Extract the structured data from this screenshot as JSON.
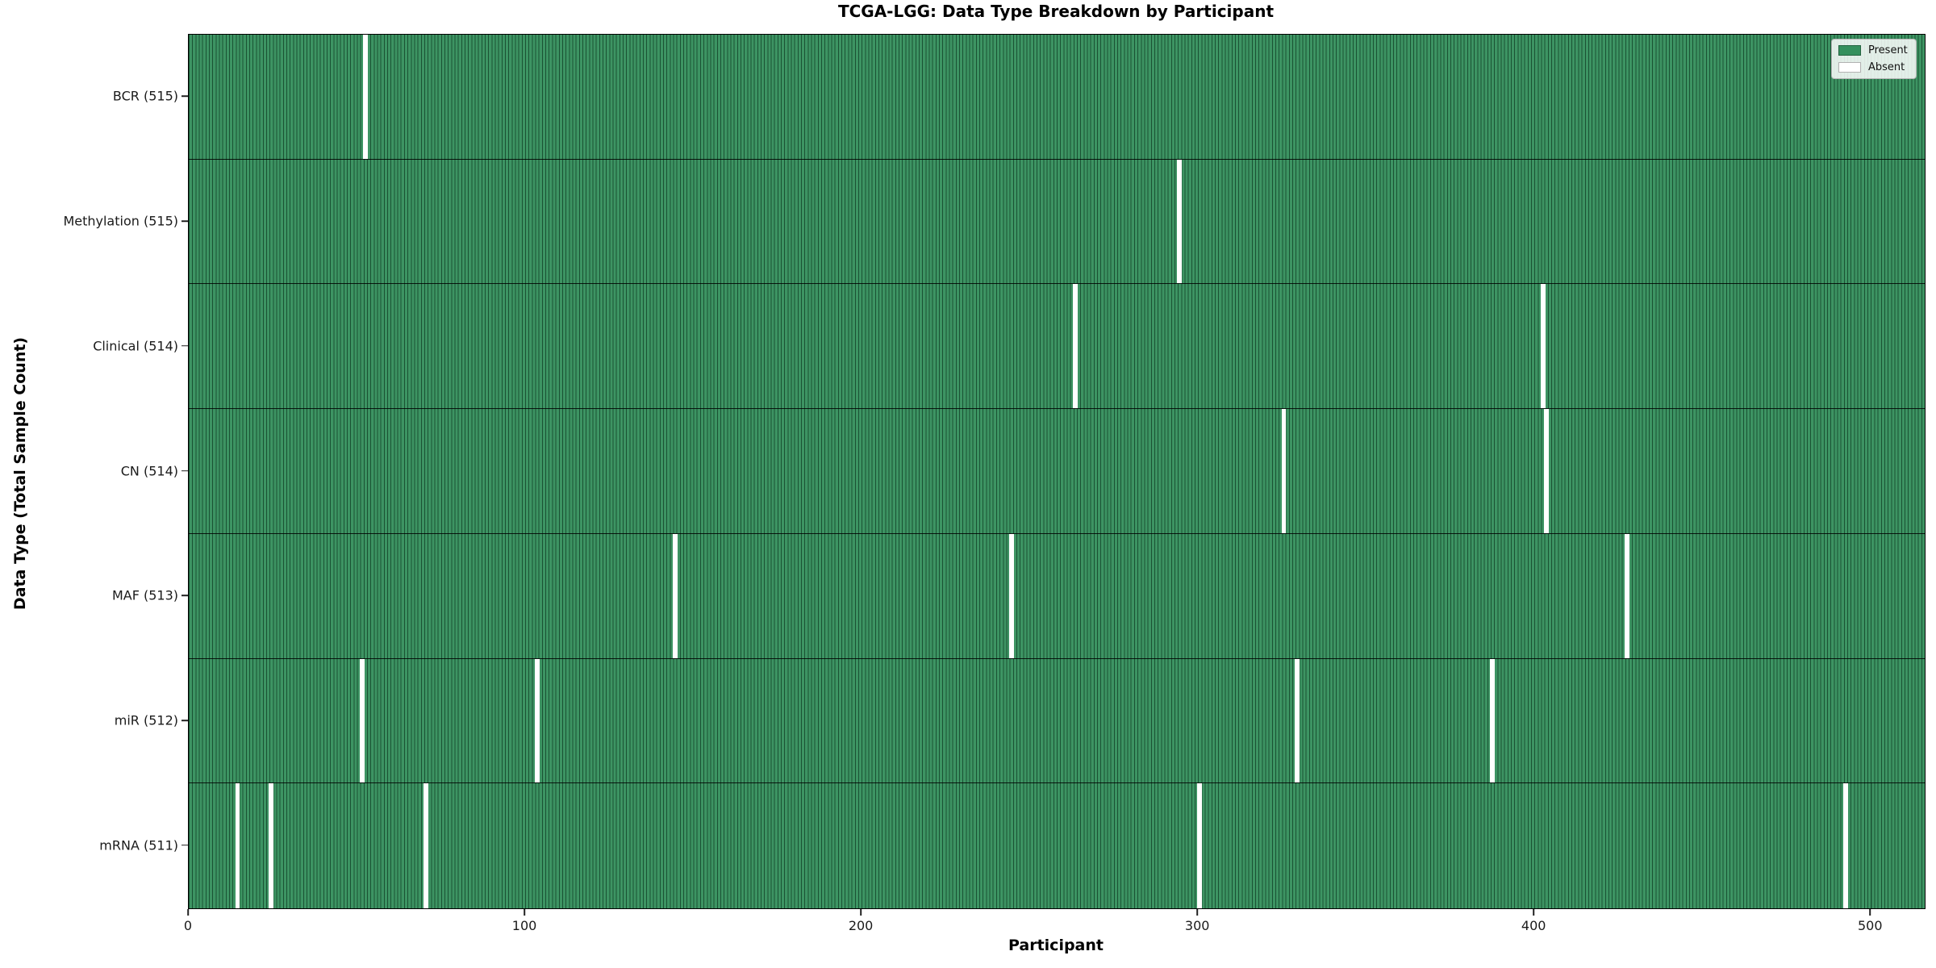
{
  "chart_data": {
    "type": "heatmap",
    "title": "TCGA-LGG: Data Type Breakdown by Participant",
    "xlabel": "Participant",
    "ylabel": "Data Type (Total Sample Count)",
    "x_ticks": [
      0,
      100,
      200,
      300,
      400,
      500
    ],
    "x_range": [
      0,
      516
    ],
    "n_participants": 516,
    "grid": false,
    "legend": {
      "position": "upper-right",
      "entries": [
        {
          "label": "Present",
          "color": "#35905D"
        },
        {
          "label": "Absent",
          "color": "#FFFFFF"
        }
      ]
    },
    "colors": {
      "present_fill": "#35905D",
      "absent_fill": "#FFFFFF",
      "cell_edge": "#1E5638",
      "row_separator": "#000000",
      "plot_border": "#000000"
    },
    "rows": [
      {
        "label": "BCR (515)",
        "data_type": "BCR",
        "present_count": 515,
        "absent_participants": [
          52
        ]
      },
      {
        "label": "Methylation (515)",
        "data_type": "Methylation",
        "present_count": 515,
        "absent_participants": [
          294
        ]
      },
      {
        "label": "Clinical (514)",
        "data_type": "Clinical",
        "present_count": 514,
        "absent_participants": [
          263,
          402
        ]
      },
      {
        "label": "CN (514)",
        "data_type": "CN",
        "present_count": 514,
        "absent_participants": [
          325,
          403
        ]
      },
      {
        "label": "MAF (513)",
        "data_type": "MAF",
        "present_count": 513,
        "absent_participants": [
          144,
          244,
          427
        ]
      },
      {
        "label": "miR (512)",
        "data_type": "miR",
        "present_count": 512,
        "absent_participants": [
          51,
          103,
          329,
          387
        ]
      },
      {
        "label": "mRNA (511)",
        "data_type": "mRNA",
        "present_count": 511,
        "absent_participants": [
          14,
          24,
          70,
          300,
          492
        ]
      }
    ]
  }
}
